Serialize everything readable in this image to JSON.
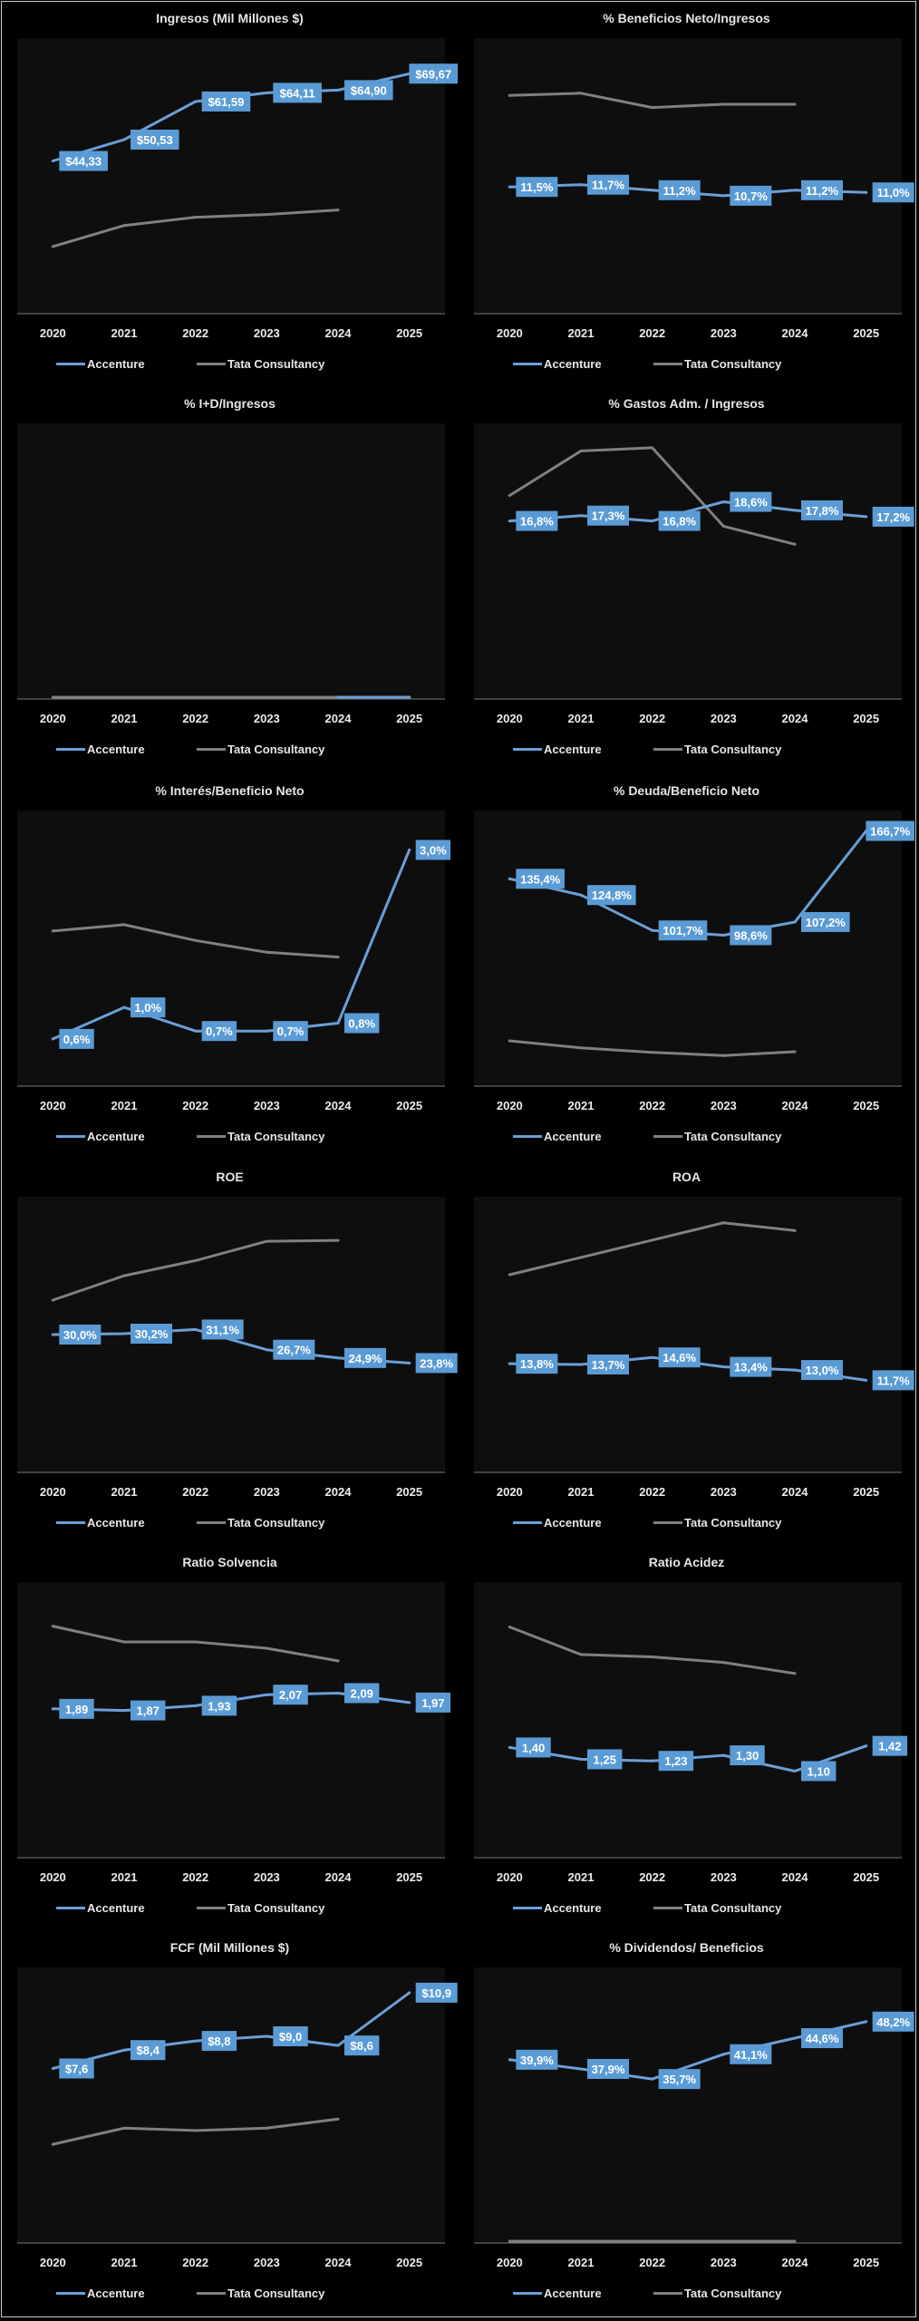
{
  "colors": {
    "accenture": "#6a9fd8",
    "accenture_label_bg": "#5b9bd5",
    "tata": "#808080",
    "plot_bg": "#0e0e0e",
    "axis": "#7a7a7a"
  },
  "legend": {
    "series_a": "Accenture",
    "series_b": "Tata Consultancy"
  },
  "chart_data": [
    {
      "type": "line",
      "title": "Ingresos (Mil Millones $)",
      "categories": [
        "2020",
        "2021",
        "2022",
        "2023",
        "2024",
        "2025"
      ],
      "ylim": [
        0,
        80
      ],
      "grid": false,
      "legend_position": "bottom",
      "series": [
        {
          "name": "Accenture",
          "values": [
            44.33,
            50.53,
            61.59,
            64.11,
            64.9,
            69.67
          ],
          "labels": [
            "$44,33",
            "$50,53",
            "$61,59",
            "$64,11",
            "$64,90",
            "$69,67"
          ]
        },
        {
          "name": "Tata Consultancy",
          "values": [
            19.5,
            25.6,
            28.0,
            28.8,
            30.1,
            null
          ]
        }
      ]
    },
    {
      "type": "line",
      "title": "% Beneficios Neto/Ingresos",
      "categories": [
        "2020",
        "2021",
        "2022",
        "2023",
        "2024",
        "2025"
      ],
      "ylim": [
        0,
        25
      ],
      "grid": false,
      "legend_position": "bottom",
      "series": [
        {
          "name": "Accenture",
          "values": [
            11.5,
            11.7,
            11.2,
            10.7,
            11.2,
            11.0
          ],
          "labels": [
            "11,5%",
            "11,7%",
            "11,2%",
            "10,7%",
            "11,2%",
            "11,0%"
          ]
        },
        {
          "name": "Tata Consultancy",
          "values": [
            19.8,
            20.0,
            18.7,
            19.0,
            19.0,
            null
          ]
        }
      ]
    },
    {
      "type": "line",
      "title": "% I+D/Ingresos",
      "categories": [
        "2020",
        "2021",
        "2022",
        "2023",
        "2024",
        "2025"
      ],
      "ylim": [
        0,
        1
      ],
      "grid": false,
      "legend_position": "bottom",
      "series": [
        {
          "name": "Accenture",
          "values": [
            null,
            null,
            null,
            null,
            0,
            0
          ],
          "labels": []
        },
        {
          "name": "Tata Consultancy",
          "values": [
            0,
            0,
            0,
            0,
            0,
            null
          ]
        }
      ]
    },
    {
      "type": "line",
      "title": "% Gastos Adm. / Ingresos",
      "categories": [
        "2020",
        "2021",
        "2022",
        "2023",
        "2024",
        "2025"
      ],
      "ylim": [
        0,
        26
      ],
      "grid": false,
      "legend_position": "bottom",
      "series": [
        {
          "name": "Accenture",
          "values": [
            16.8,
            17.3,
            16.8,
            18.6,
            17.8,
            17.2
          ],
          "labels": [
            "16,8%",
            "17,3%",
            "16,8%",
            "18,6%",
            "17,8%",
            "17,2%"
          ]
        },
        {
          "name": "Tata Consultancy",
          "values": [
            19.2,
            23.4,
            23.7,
            16.3,
            14.6,
            null
          ]
        }
      ]
    },
    {
      "type": "line",
      "title": "% Interés/Beneficio  Neto",
      "categories": [
        "2020",
        "2021",
        "2022",
        "2023",
        "2024",
        "2025"
      ],
      "ylim": [
        0,
        3.5
      ],
      "grid": false,
      "legend_position": "bottom",
      "series": [
        {
          "name": "Accenture",
          "values": [
            0.6,
            1.0,
            0.7,
            0.7,
            0.8,
            3.0
          ],
          "labels": [
            "0,6%",
            "1,0%",
            "0,7%",
            "0,7%",
            "0,8%",
            "3,0%"
          ]
        },
        {
          "name": "Tata Consultancy",
          "values": [
            1.97,
            2.05,
            1.85,
            1.7,
            1.64,
            null
          ]
        }
      ]
    },
    {
      "type": "line",
      "title": "% Deuda/Beneficio  Neto",
      "categories": [
        "2020",
        "2021",
        "2022",
        "2023",
        "2024",
        "2025"
      ],
      "ylim": [
        0,
        180
      ],
      "grid": false,
      "legend_position": "bottom",
      "series": [
        {
          "name": "Accenture",
          "values": [
            135.4,
            124.8,
            101.7,
            98.6,
            107.2,
            166.7
          ],
          "labels": [
            "135,4%",
            "124,8%",
            "101,7%",
            "98,6%",
            "107,2%",
            "166,7%"
          ]
        },
        {
          "name": "Tata Consultancy",
          "values": [
            29.6,
            25.0,
            22.0,
            20.0,
            22.5,
            null
          ]
        }
      ]
    },
    {
      "type": "line",
      "title": "ROE",
      "categories": [
        "2020",
        "2021",
        "2022",
        "2023",
        "2024",
        "2025"
      ],
      "ylim": [
        0,
        60
      ],
      "grid": false,
      "legend_position": "bottom",
      "series": [
        {
          "name": "Accenture",
          "values": [
            30.0,
            30.2,
            31.1,
            26.7,
            24.9,
            23.8
          ],
          "labels": [
            "30,0%",
            "30,2%",
            "31,1%",
            "26,7%",
            "24,9%",
            "23,8%"
          ]
        },
        {
          "name": "Tata Consultancy",
          "values": [
            37.5,
            42.8,
            46.1,
            50.3,
            50.5,
            null
          ]
        }
      ]
    },
    {
      "type": "line",
      "title": "ROA",
      "categories": [
        "2020",
        "2021",
        "2022",
        "2023",
        "2024",
        "2025"
      ],
      "ylim": [
        0,
        35
      ],
      "grid": false,
      "legend_position": "bottom",
      "series": [
        {
          "name": "Accenture",
          "values": [
            13.8,
            13.7,
            14.6,
            13.4,
            13.0,
            11.7
          ],
          "labels": [
            "13,8%",
            "13,7%",
            "14,6%",
            "13,4%",
            "13,0%",
            "11,7%"
          ]
        },
        {
          "name": "Tata Consultancy",
          "values": [
            25.1,
            27.3,
            29.5,
            31.7,
            30.7,
            null
          ]
        }
      ]
    },
    {
      "type": "line",
      "title": "Ratio Solvencia",
      "categories": [
        "2020",
        "2021",
        "2022",
        "2023",
        "2024",
        "2025"
      ],
      "ylim": [
        0,
        3.5
      ],
      "grid": false,
      "legend_position": "bottom",
      "series": [
        {
          "name": "Accenture",
          "values": [
            1.89,
            1.87,
            1.93,
            2.07,
            2.09,
            1.97
          ],
          "labels": [
            "1,89",
            "1,87",
            "1,93",
            "2,07",
            "2,09",
            "1,97"
          ]
        },
        {
          "name": "Tata Consultancy",
          "values": [
            2.94,
            2.74,
            2.74,
            2.66,
            2.5,
            null
          ]
        }
      ]
    },
    {
      "type": "line",
      "title": "Ratio Acidez",
      "categories": [
        "2020",
        "2021",
        "2022",
        "2023",
        "2024",
        "2025"
      ],
      "ylim": [
        0,
        3.5
      ],
      "grid": false,
      "legend_position": "bottom",
      "series": [
        {
          "name": "Accenture",
          "values": [
            1.4,
            1.25,
            1.23,
            1.3,
            1.1,
            1.42
          ],
          "labels": [
            "1,40",
            "1,25",
            "1,23",
            "1,30",
            "1,10",
            "1,42"
          ]
        },
        {
          "name": "Tata Consultancy",
          "values": [
            2.93,
            2.58,
            2.55,
            2.48,
            2.34,
            null
          ]
        }
      ]
    },
    {
      "type": "line",
      "title": "FCF (Mil  Millones $)",
      "categories": [
        "2020",
        "2021",
        "2022",
        "2023",
        "2024",
        "2025"
      ],
      "ylim": [
        0,
        12
      ],
      "grid": false,
      "legend_position": "bottom",
      "series": [
        {
          "name": "Accenture",
          "values": [
            7.6,
            8.4,
            8.8,
            9.0,
            8.6,
            10.9
          ],
          "labels": [
            "$7,6",
            "$8,4",
            "$8,8",
            "$9,0",
            "$8,6",
            "$10,9"
          ]
        },
        {
          "name": "Tata Consultancy",
          "values": [
            4.3,
            5.0,
            4.9,
            5.0,
            5.4,
            null
          ]
        }
      ]
    },
    {
      "type": "line",
      "title": "% Dividendos/  Beneficios",
      "categories": [
        "2020",
        "2021",
        "2022",
        "2023",
        "2024",
        "2025"
      ],
      "ylim": [
        0,
        60
      ],
      "grid": false,
      "legend_position": "bottom",
      "series": [
        {
          "name": "Accenture",
          "values": [
            39.9,
            37.9,
            35.7,
            41.1,
            44.6,
            48.2
          ],
          "labels": [
            "39,9%",
            "37,9%",
            "35,7%",
            "41,1%",
            "44,6%",
            "48,2%"
          ]
        },
        {
          "name": "Tata Consultancy",
          "values": [
            0,
            0,
            0,
            0,
            0,
            null
          ]
        }
      ]
    }
  ]
}
